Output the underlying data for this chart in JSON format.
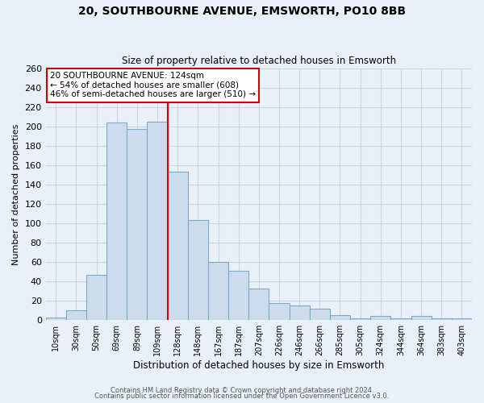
{
  "title": "20, SOUTHBOURNE AVENUE, EMSWORTH, PO10 8BB",
  "subtitle": "Size of property relative to detached houses in Emsworth",
  "xlabel": "Distribution of detached houses by size in Emsworth",
  "ylabel": "Number of detached properties",
  "bar_color": "#cddcec",
  "bar_edge_color": "#7aaac8",
  "bg_color": "#eaf0f8",
  "grid_color": "#c8d4e0",
  "categories": [
    "10sqm",
    "30sqm",
    "50sqm",
    "69sqm",
    "89sqm",
    "109sqm",
    "128sqm",
    "148sqm",
    "167sqm",
    "187sqm",
    "207sqm",
    "226sqm",
    "246sqm",
    "266sqm",
    "285sqm",
    "305sqm",
    "324sqm",
    "344sqm",
    "364sqm",
    "383sqm",
    "403sqm"
  ],
  "values": [
    3,
    10,
    47,
    204,
    197,
    205,
    153,
    103,
    60,
    51,
    33,
    18,
    15,
    12,
    5,
    2,
    4,
    2,
    4,
    2,
    2
  ],
  "ylim": [
    0,
    260
  ],
  "yticks": [
    0,
    20,
    40,
    60,
    80,
    100,
    120,
    140,
    160,
    180,
    200,
    220,
    240,
    260
  ],
  "vline_x": 5.5,
  "vline_color": "#cc0000",
  "annotation_title": "20 SOUTHBOURNE AVENUE: 124sqm",
  "annotation_line1": "← 54% of detached houses are smaller (608)",
  "annotation_line2": "46% of semi-detached houses are larger (510) →",
  "annotation_box_color": "white",
  "annotation_box_edge": "#cc0000",
  "footer1": "Contains HM Land Registry data © Crown copyright and database right 2024.",
  "footer2": "Contains public sector information licensed under the Open Government Licence v3.0."
}
